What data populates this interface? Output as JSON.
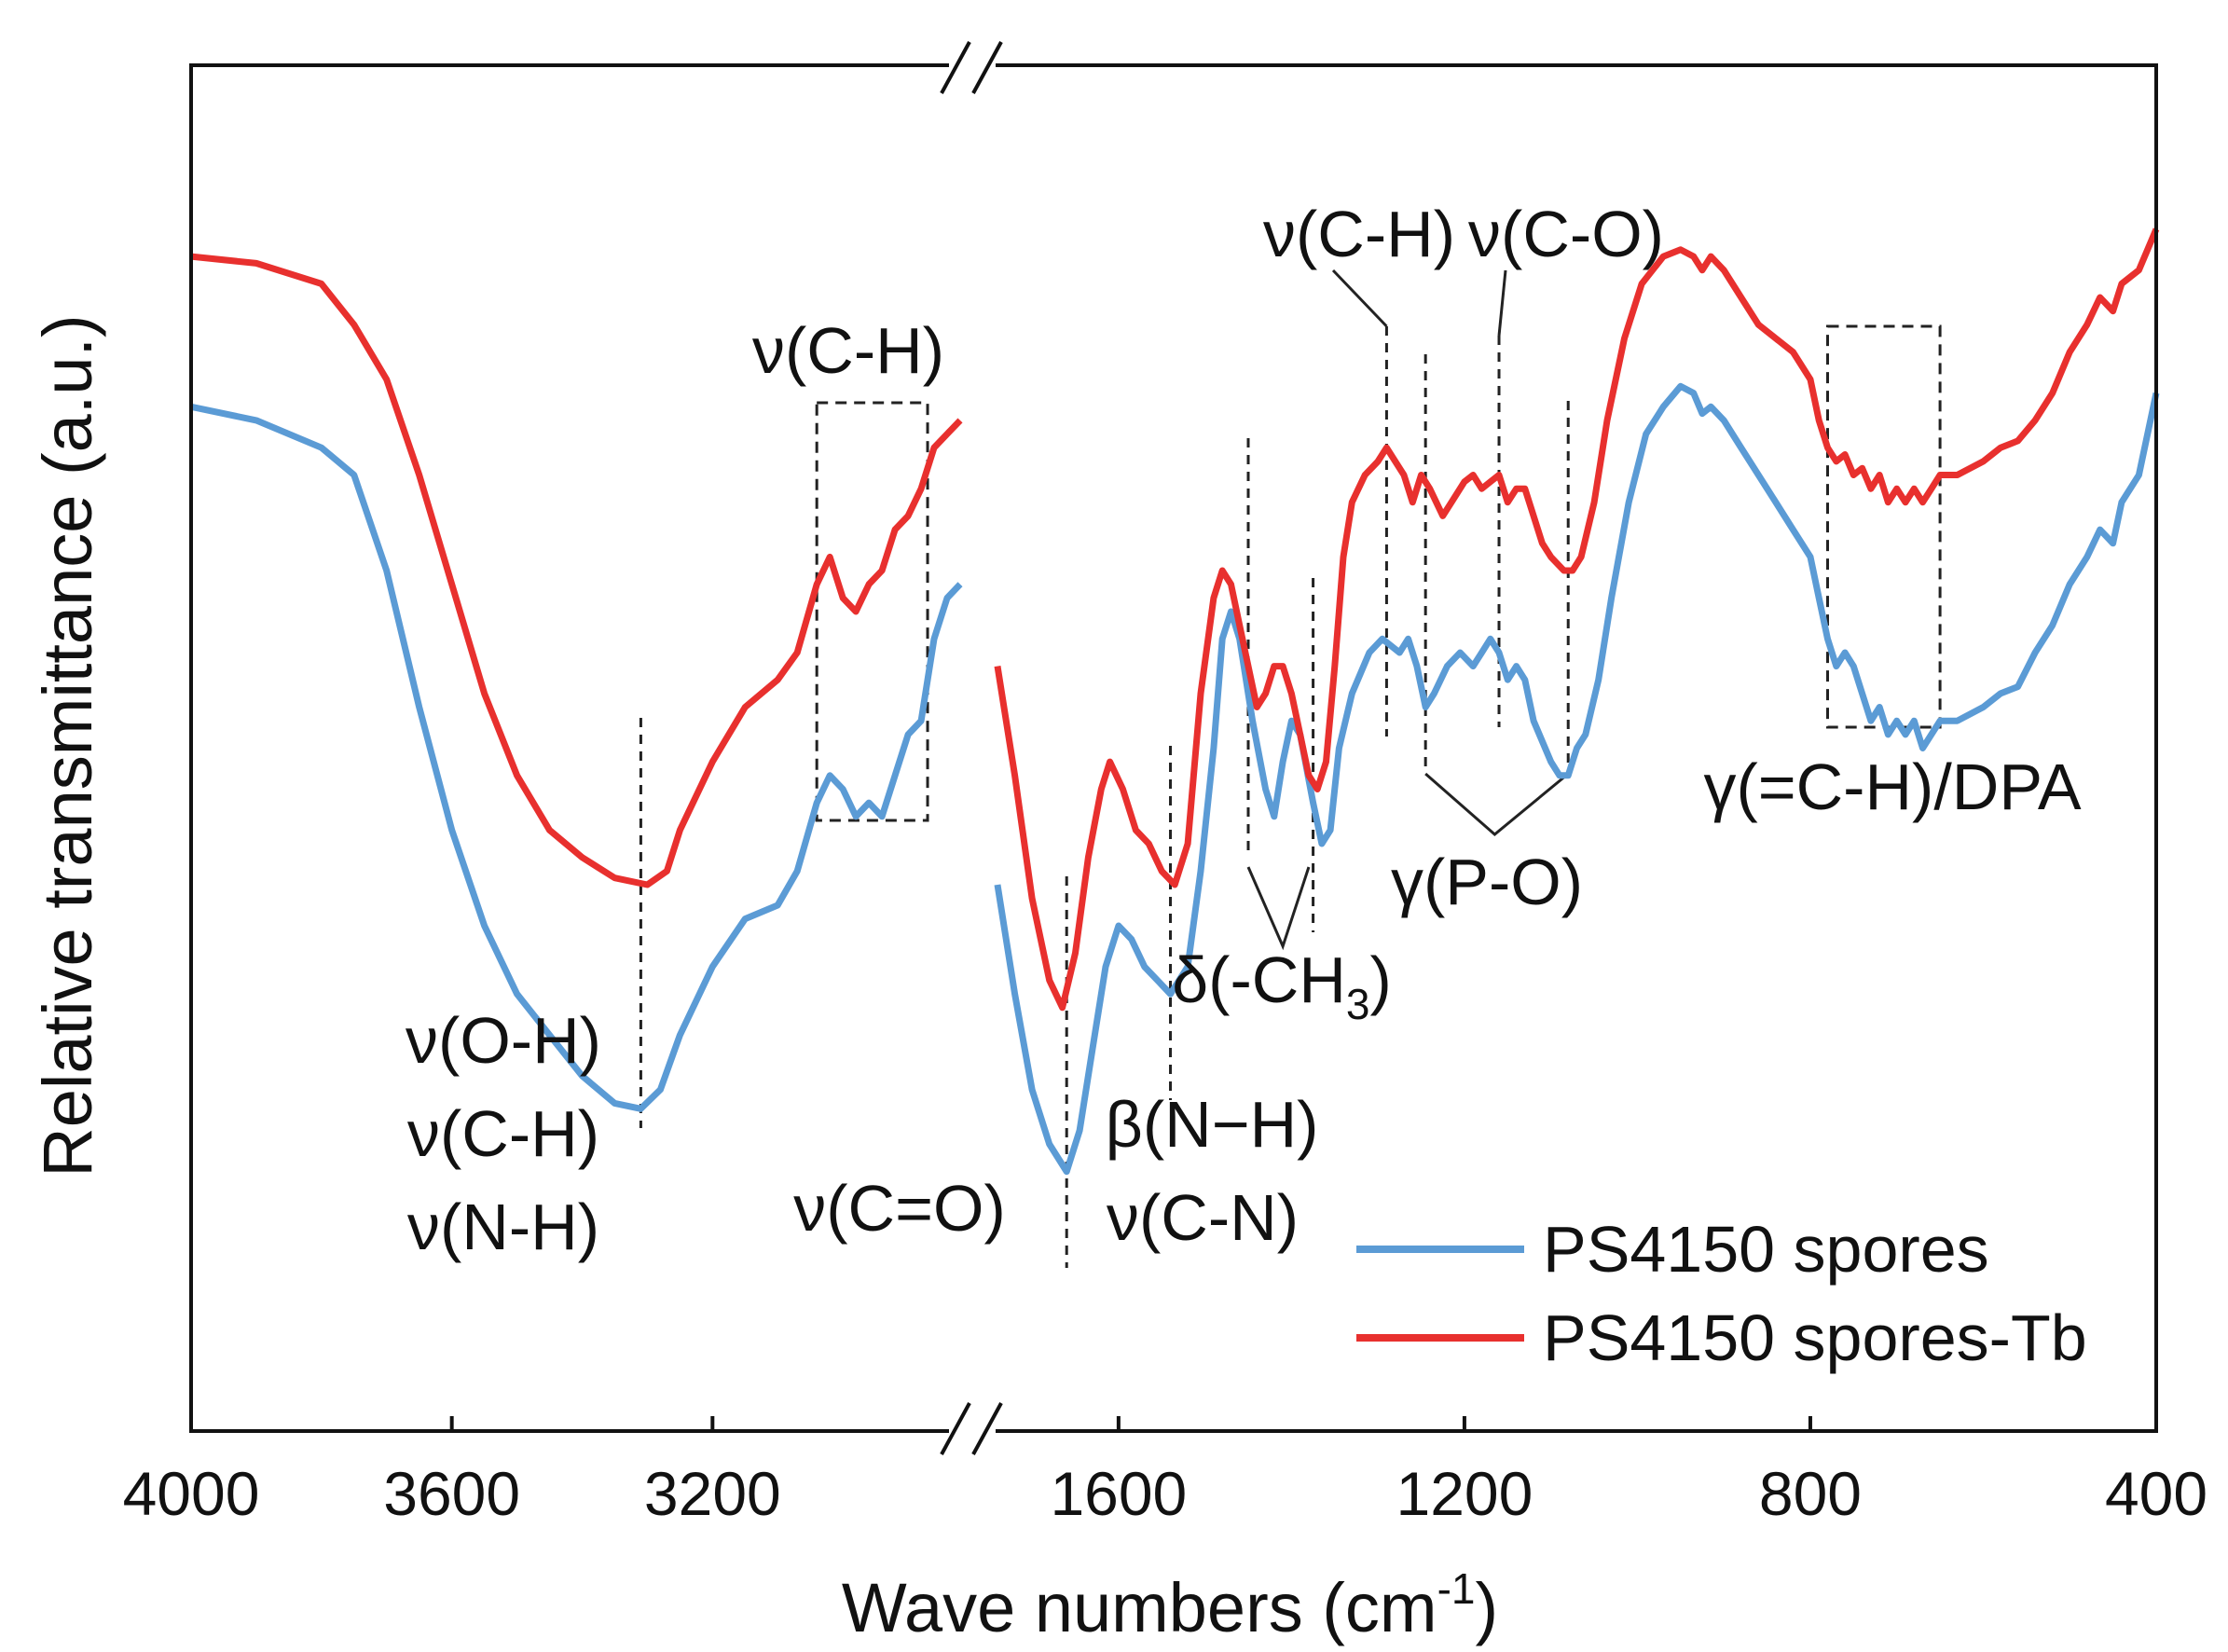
{
  "chart_data": {
    "type": "line",
    "title": "",
    "xlabel": "Wave numbers (cm",
    "xlabel_sup": "-1",
    "xlabel_close": ")",
    "ylabel": "Relative transmittance (a.u.)",
    "x_reversed": true,
    "axis_break": "//",
    "segments": [
      {
        "range": [
          4000,
          2820
        ]
      },
      {
        "range": [
          1740,
          400
        ]
      }
    ],
    "x_ticks": [
      {
        "value": 4000,
        "label": "4000"
      },
      {
        "value": 3600,
        "label": "3600"
      },
      {
        "value": 3200,
        "label": "3200"
      },
      {
        "value": 1600,
        "label": "1600"
      },
      {
        "value": 1200,
        "label": "1200"
      },
      {
        "value": 800,
        "label": "800"
      },
      {
        "value": 400,
        "label": "400"
      }
    ],
    "ylim": [
      0,
      100
    ],
    "series": [
      {
        "name": "PS4150 spores",
        "color": "#5b9bd5",
        "points": [
          [
            4000,
            75
          ],
          [
            3900,
            74
          ],
          [
            3800,
            72
          ],
          [
            3750,
            70
          ],
          [
            3700,
            63
          ],
          [
            3650,
            53
          ],
          [
            3600,
            44
          ],
          [
            3550,
            37
          ],
          [
            3500,
            32
          ],
          [
            3450,
            29
          ],
          [
            3400,
            26
          ],
          [
            3350,
            24
          ],
          [
            3310,
            23.6
          ],
          [
            3280,
            25
          ],
          [
            3250,
            29
          ],
          [
            3200,
            34
          ],
          [
            3150,
            37.5
          ],
          [
            3100,
            38.5
          ],
          [
            3070,
            41
          ],
          [
            3040,
            46
          ],
          [
            3020,
            48
          ],
          [
            3000,
            47
          ],
          [
            2980,
            45
          ],
          [
            2960,
            46
          ],
          [
            2940,
            45
          ],
          [
            2920,
            48
          ],
          [
            2900,
            51
          ],
          [
            2880,
            52
          ],
          [
            2860,
            58
          ],
          [
            2840,
            61
          ],
          [
            2820,
            62
          ]
        ]
      },
      {
        "name": "PS4150 spores-Tb",
        "color": "#e8302e",
        "points": [
          [
            4000,
            86
          ],
          [
            3900,
            85.5
          ],
          [
            3800,
            84
          ],
          [
            3750,
            81
          ],
          [
            3700,
            77
          ],
          [
            3650,
            70
          ],
          [
            3600,
            62
          ],
          [
            3550,
            54
          ],
          [
            3500,
            48
          ],
          [
            3450,
            44
          ],
          [
            3400,
            42
          ],
          [
            3350,
            40.5
          ],
          [
            3300,
            40
          ],
          [
            3270,
            41
          ],
          [
            3250,
            44
          ],
          [
            3200,
            49
          ],
          [
            3150,
            53
          ],
          [
            3100,
            55
          ],
          [
            3070,
            57
          ],
          [
            3040,
            62
          ],
          [
            3020,
            64
          ],
          [
            3000,
            61
          ],
          [
            2980,
            60
          ],
          [
            2960,
            62
          ],
          [
            2940,
            63
          ],
          [
            2920,
            66
          ],
          [
            2900,
            67
          ],
          [
            2880,
            69
          ],
          [
            2860,
            72
          ],
          [
            2840,
            73
          ],
          [
            2820,
            74
          ]
        ]
      },
      {
        "name": "PS4150 spores",
        "color": "#5b9bd5",
        "points": [
          [
            1740,
            40
          ],
          [
            1720,
            32
          ],
          [
            1700,
            25
          ],
          [
            1680,
            21
          ],
          [
            1660,
            19
          ],
          [
            1645,
            22
          ],
          [
            1630,
            28
          ],
          [
            1615,
            34
          ],
          [
            1600,
            37
          ],
          [
            1585,
            36
          ],
          [
            1570,
            34
          ],
          [
            1555,
            33
          ],
          [
            1540,
            32
          ],
          [
            1520,
            34
          ],
          [
            1505,
            41
          ],
          [
            1490,
            50
          ],
          [
            1480,
            58
          ],
          [
            1470,
            60
          ],
          [
            1460,
            58
          ],
          [
            1445,
            52
          ],
          [
            1430,
            47
          ],
          [
            1420,
            45
          ],
          [
            1410,
            49
          ],
          [
            1400,
            52
          ],
          [
            1390,
            51
          ],
          [
            1375,
            46
          ],
          [
            1365,
            43
          ],
          [
            1355,
            44
          ],
          [
            1345,
            50
          ],
          [
            1330,
            54
          ],
          [
            1310,
            57
          ],
          [
            1295,
            58
          ],
          [
            1285,
            57.5
          ],
          [
            1275,
            57
          ],
          [
            1265,
            58
          ],
          [
            1255,
            56
          ],
          [
            1245,
            53
          ],
          [
            1235,
            54
          ],
          [
            1220,
            56
          ],
          [
            1205,
            57
          ],
          [
            1190,
            56
          ],
          [
            1180,
            57
          ],
          [
            1170,
            58
          ],
          [
            1160,
            57
          ],
          [
            1150,
            55
          ],
          [
            1140,
            56
          ],
          [
            1130,
            55
          ],
          [
            1120,
            52
          ],
          [
            1100,
            49
          ],
          [
            1090,
            48
          ],
          [
            1080,
            48
          ],
          [
            1070,
            50
          ],
          [
            1060,
            51
          ],
          [
            1045,
            55
          ],
          [
            1030,
            61
          ],
          [
            1010,
            68
          ],
          [
            990,
            73
          ],
          [
            970,
            75
          ],
          [
            950,
            76.5
          ],
          [
            935,
            76
          ],
          [
            925,
            74.5
          ],
          [
            915,
            75
          ],
          [
            900,
            74
          ],
          [
            880,
            72
          ],
          [
            860,
            70
          ],
          [
            840,
            68
          ],
          [
            820,
            66
          ],
          [
            800,
            64
          ],
          [
            790,
            61
          ],
          [
            780,
            58
          ],
          [
            770,
            56
          ],
          [
            760,
            57
          ],
          [
            750,
            56
          ],
          [
            740,
            54
          ],
          [
            730,
            52
          ],
          [
            720,
            53
          ],
          [
            710,
            51
          ],
          [
            700,
            52
          ],
          [
            690,
            51
          ],
          [
            680,
            52
          ],
          [
            670,
            50
          ],
          [
            660,
            51
          ],
          [
            650,
            52
          ],
          [
            630,
            52
          ],
          [
            600,
            53
          ],
          [
            580,
            54
          ],
          [
            560,
            54.5
          ],
          [
            540,
            57
          ],
          [
            520,
            59
          ],
          [
            500,
            62
          ],
          [
            480,
            64
          ],
          [
            465,
            66
          ],
          [
            450,
            65
          ],
          [
            440,
            68
          ],
          [
            420,
            70
          ],
          [
            400,
            76
          ]
        ]
      },
      {
        "name": "PS4150 spores-Tb",
        "color": "#e8302e",
        "points": [
          [
            1740,
            56
          ],
          [
            1720,
            48
          ],
          [
            1700,
            39
          ],
          [
            1680,
            33
          ],
          [
            1665,
            31
          ],
          [
            1650,
            35
          ],
          [
            1635,
            42
          ],
          [
            1620,
            47
          ],
          [
            1610,
            49
          ],
          [
            1595,
            47
          ],
          [
            1580,
            44
          ],
          [
            1565,
            43
          ],
          [
            1550,
            41
          ],
          [
            1535,
            40
          ],
          [
            1520,
            43
          ],
          [
            1505,
            54
          ],
          [
            1490,
            61
          ],
          [
            1480,
            63
          ],
          [
            1470,
            62
          ],
          [
            1460,
            59
          ],
          [
            1450,
            56
          ],
          [
            1440,
            53
          ],
          [
            1430,
            54
          ],
          [
            1420,
            56
          ],
          [
            1410,
            56
          ],
          [
            1400,
            54
          ],
          [
            1390,
            51
          ],
          [
            1380,
            48
          ],
          [
            1370,
            47
          ],
          [
            1360,
            49
          ],
          [
            1350,
            56
          ],
          [
            1340,
            64
          ],
          [
            1330,
            68
          ],
          [
            1315,
            70
          ],
          [
            1300,
            71
          ],
          [
            1290,
            72
          ],
          [
            1280,
            71
          ],
          [
            1270,
            70
          ],
          [
            1260,
            68
          ],
          [
            1250,
            70
          ],
          [
            1240,
            69
          ],
          [
            1225,
            67
          ],
          [
            1215,
            68
          ],
          [
            1200,
            69.5
          ],
          [
            1190,
            70
          ],
          [
            1180,
            69
          ],
          [
            1170,
            69.5
          ],
          [
            1160,
            70
          ],
          [
            1150,
            68
          ],
          [
            1140,
            69
          ],
          [
            1130,
            69
          ],
          [
            1120,
            67
          ],
          [
            1110,
            65
          ],
          [
            1100,
            64
          ],
          [
            1085,
            63
          ],
          [
            1075,
            63
          ],
          [
            1065,
            64
          ],
          [
            1050,
            68
          ],
          [
            1035,
            74
          ],
          [
            1015,
            80
          ],
          [
            995,
            84
          ],
          [
            970,
            86
          ],
          [
            950,
            86.5
          ],
          [
            935,
            86
          ],
          [
            925,
            85
          ],
          [
            915,
            86
          ],
          [
            900,
            85
          ],
          [
            880,
            83
          ],
          [
            860,
            81
          ],
          [
            840,
            80
          ],
          [
            820,
            79
          ],
          [
            800,
            77
          ],
          [
            790,
            74
          ],
          [
            780,
            72
          ],
          [
            770,
            71
          ],
          [
            760,
            71.5
          ],
          [
            750,
            70
          ],
          [
            740,
            70.5
          ],
          [
            730,
            69
          ],
          [
            720,
            70
          ],
          [
            710,
            68
          ],
          [
            700,
            69
          ],
          [
            690,
            68
          ],
          [
            680,
            69
          ],
          [
            670,
            68
          ],
          [
            660,
            69
          ],
          [
            650,
            70
          ],
          [
            630,
            70
          ],
          [
            600,
            71
          ],
          [
            580,
            72
          ],
          [
            560,
            72.5
          ],
          [
            540,
            74
          ],
          [
            520,
            76
          ],
          [
            500,
            79
          ],
          [
            480,
            81
          ],
          [
            465,
            83
          ],
          [
            450,
            82
          ],
          [
            440,
            84
          ],
          [
            420,
            85
          ],
          [
            400,
            88
          ]
        ]
      }
    ],
    "annotations": [
      {
        "text": "ν(O-H)",
        "x": 3400,
        "y": 22
      },
      {
        "text": "ν(C-H)",
        "x": 3400,
        "y": 14
      },
      {
        "text": "ν(N-H)",
        "x": 3400,
        "y": 6
      },
      {
        "text": "ν(C-H)",
        "x": 2980,
        "y": 80
      },
      {
        "text": "ν(C=O)",
        "x": 1720,
        "y": 12
      },
      {
        "text": "β(N−H)",
        "x": 1500,
        "y": 14
      },
      {
        "text": "ν(C-N)",
        "x": 1500,
        "y": 7
      },
      {
        "text": "δ(-CH",
        "sub": "3",
        "close": ")",
        "x": 1360,
        "y": 26
      },
      {
        "text": "γ(P-O)",
        "x": 1180,
        "y": 35
      },
      {
        "text": "ν(C-H)",
        "x": 1330,
        "y": 90
      },
      {
        "text": "ν(C-O)",
        "x": 1160,
        "y": 90
      },
      {
        "text": "γ(=C-H)/DPA",
        "x": 700,
        "y": 44
      }
    ],
    "legend": {
      "position": "bottom-right",
      "entries": [
        {
          "label": "PS4150 spores",
          "color": "#5b9bd5"
        },
        {
          "label": "PS4150 spores-Tb",
          "color": "#e8302e"
        }
      ]
    }
  }
}
